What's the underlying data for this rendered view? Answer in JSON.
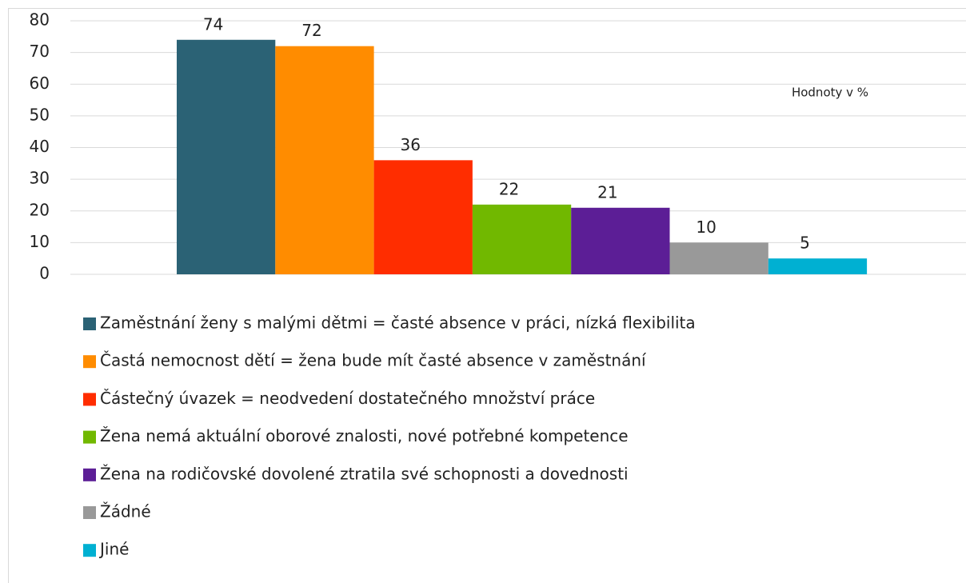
{
  "chart_data": {
    "type": "bar",
    "annotation": "Hodnoty v %",
    "series": [
      {
        "name": "Zaměstnání ženy s malými dětmi = časté absence v práci, nízká flexibilita",
        "color": "#2b6275",
        "values": [
          74
        ]
      },
      {
        "name": "Častá nemocnost dětí = žena bude mít časté absence v zaměstnání",
        "color": "#ff8c00",
        "values": [
          72
        ]
      },
      {
        "name": "Částečný úvazek = neodvedení dostatečného množství práce",
        "color": "#ff2d00",
        "values": [
          36
        ]
      },
      {
        "name": "Žena nemá aktuální oborové znalosti, nové potřebné kompetence",
        "color": "#71b800",
        "values": [
          22
        ]
      },
      {
        "name": "Žena na rodičovské dovolené ztratila své schopnosti a dovednosti",
        "color": "#5c1e96",
        "values": [
          21
        ]
      },
      {
        "name": "Žádné",
        "color": "#999999",
        "values": [
          10
        ]
      },
      {
        "name": "Jiné",
        "color": "#00b0d2",
        "values": [
          5
        ]
      }
    ],
    "ylim": [
      0,
      80
    ],
    "yticks": [
      0,
      10,
      20,
      30,
      40,
      50,
      60,
      70,
      80
    ],
    "grid": true
  }
}
